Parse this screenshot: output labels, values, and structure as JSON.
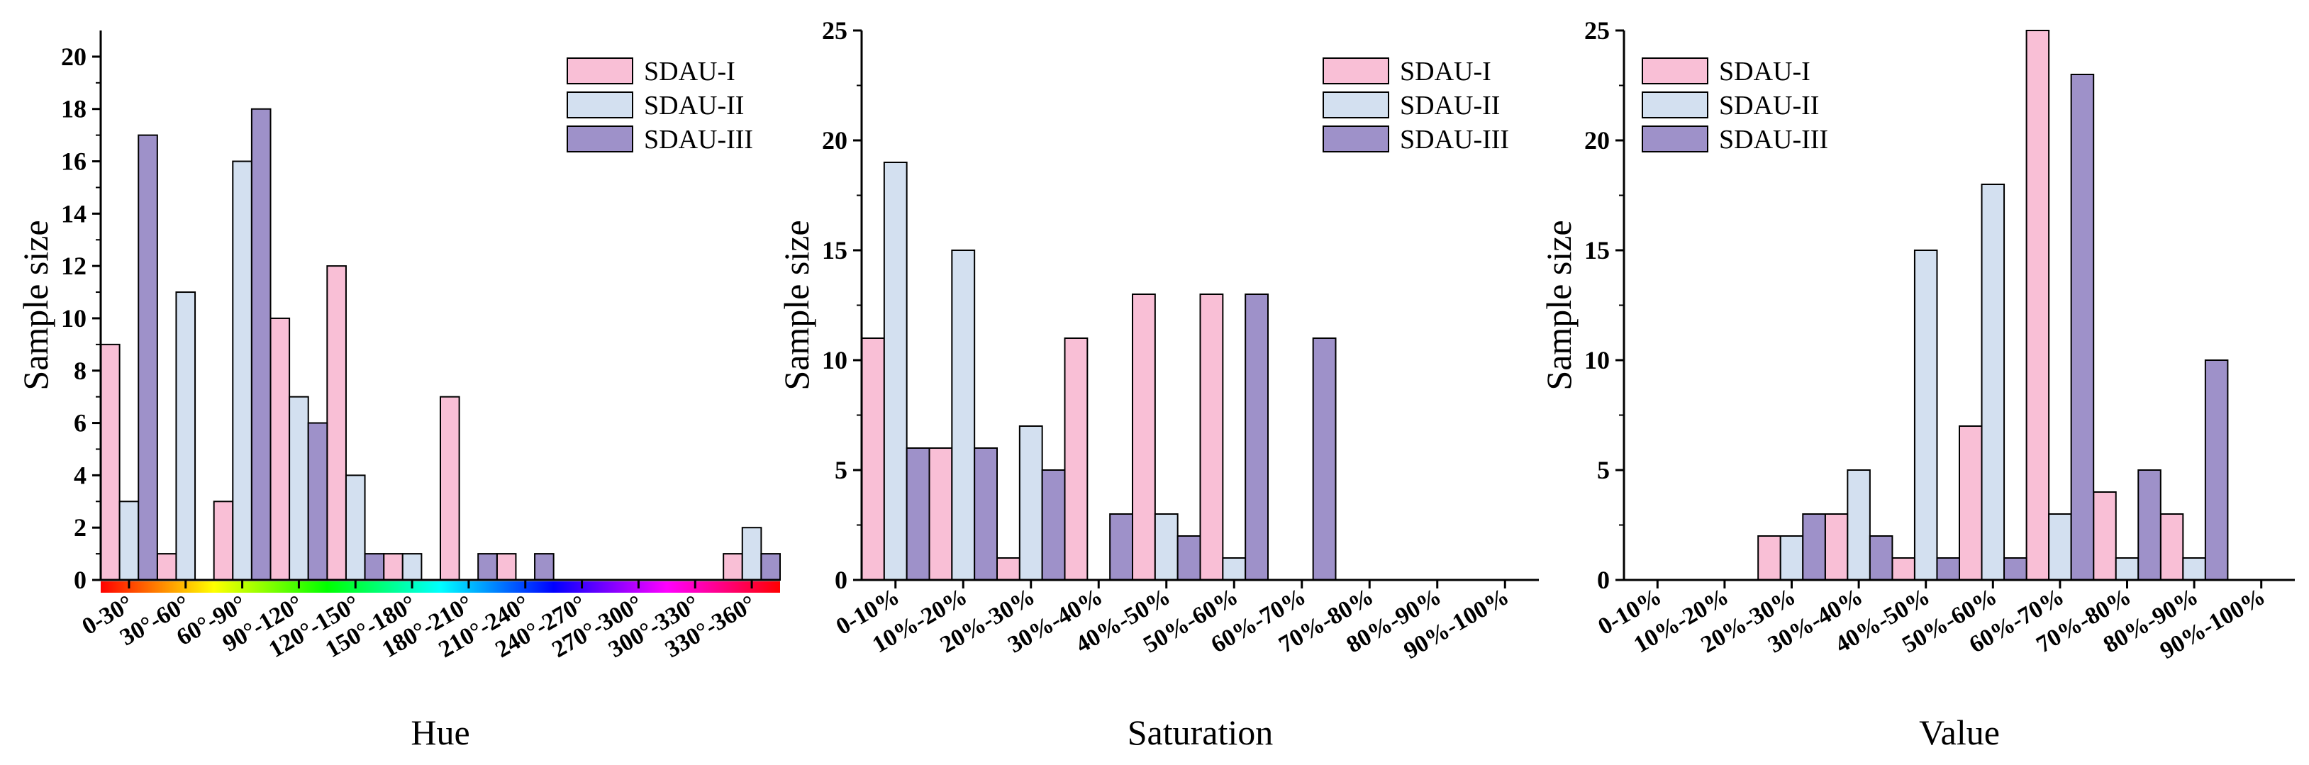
{
  "colors": {
    "SDAU-I": "#f9bfd6",
    "SDAU-II": "#d3e0f0",
    "SDAU-III": "#9e91c9",
    "hue_gradient": [
      "#ff0000",
      "#ffff00",
      "#00ff00",
      "#00ffff",
      "#0000ff",
      "#ff00ff",
      "#ff0000"
    ]
  },
  "chart_data": [
    {
      "type": "bar",
      "title": "",
      "xlabel": "Hue",
      "ylabel": "Sample size",
      "ylim": [
        0,
        21
      ],
      "yticks": [
        0,
        2,
        4,
        6,
        8,
        10,
        12,
        14,
        16,
        18,
        20
      ],
      "categories": [
        "0-30°",
        "30°-60°",
        "60°-90°",
        "90°-120°",
        "120°-150°",
        "150°-180°",
        "180°-210°",
        "210°-240°",
        "240°-270°",
        "270°-300°",
        "300°-330°",
        "330°-360°"
      ],
      "series": [
        {
          "name": "SDAU-I",
          "values": [
            9,
            1,
            3,
            10,
            12,
            1,
            7,
            1,
            0,
            0,
            0,
            1
          ]
        },
        {
          "name": "SDAU-II",
          "values": [
            3,
            11,
            16,
            7,
            4,
            1,
            0,
            0,
            0,
            0,
            0,
            2
          ]
        },
        {
          "name": "SDAU-III",
          "values": [
            17,
            0,
            18,
            6,
            1,
            0,
            1,
            1,
            0,
            0,
            0,
            1
          ]
        }
      ],
      "legend": "top-right",
      "color_bar": true
    },
    {
      "type": "bar",
      "title": "",
      "xlabel": "Saturation",
      "ylabel": "Sample size",
      "ylim": [
        0,
        25
      ],
      "yticks": [
        0,
        5,
        10,
        15,
        20,
        25
      ],
      "categories": [
        "0-10%",
        "10%-20%",
        "20%-30%",
        "30%-40%",
        "40%-50%",
        "50%-60%",
        "60%-70%",
        "70%-80%",
        "80%-90%",
        "90%-100%"
      ],
      "series": [
        {
          "name": "SDAU-I",
          "values": [
            11,
            6,
            1,
            11,
            13,
            13,
            0,
            0,
            0,
            0
          ]
        },
        {
          "name": "SDAU-II",
          "values": [
            19,
            15,
            7,
            0,
            3,
            1,
            0,
            0,
            0,
            0
          ]
        },
        {
          "name": "SDAU-III",
          "values": [
            6,
            6,
            5,
            3,
            2,
            13,
            11,
            0,
            0,
            0
          ]
        }
      ],
      "legend": "top-right",
      "color_bar": false
    },
    {
      "type": "bar",
      "title": "",
      "xlabel": "Value",
      "ylabel": "Sample size",
      "ylim": [
        0,
        25
      ],
      "yticks": [
        0,
        5,
        10,
        15,
        20,
        25
      ],
      "categories": [
        "0-10%",
        "10%-20%",
        "20%-30%",
        "30%-40%",
        "40%-50%",
        "50%-60%",
        "60%-70%",
        "70%-80%",
        "80%-90%",
        "90%-100%"
      ],
      "series": [
        {
          "name": "SDAU-I",
          "values": [
            0,
            0,
            2,
            3,
            1,
            7,
            25,
            4,
            3,
            0
          ]
        },
        {
          "name": "SDAU-II",
          "values": [
            0,
            0,
            2,
            5,
            15,
            18,
            3,
            1,
            1,
            0
          ]
        },
        {
          "name": "SDAU-III",
          "values": [
            0,
            0,
            3,
            2,
            1,
            1,
            23,
            5,
            10,
            0
          ]
        }
      ],
      "legend": "top-left",
      "color_bar": false
    }
  ]
}
